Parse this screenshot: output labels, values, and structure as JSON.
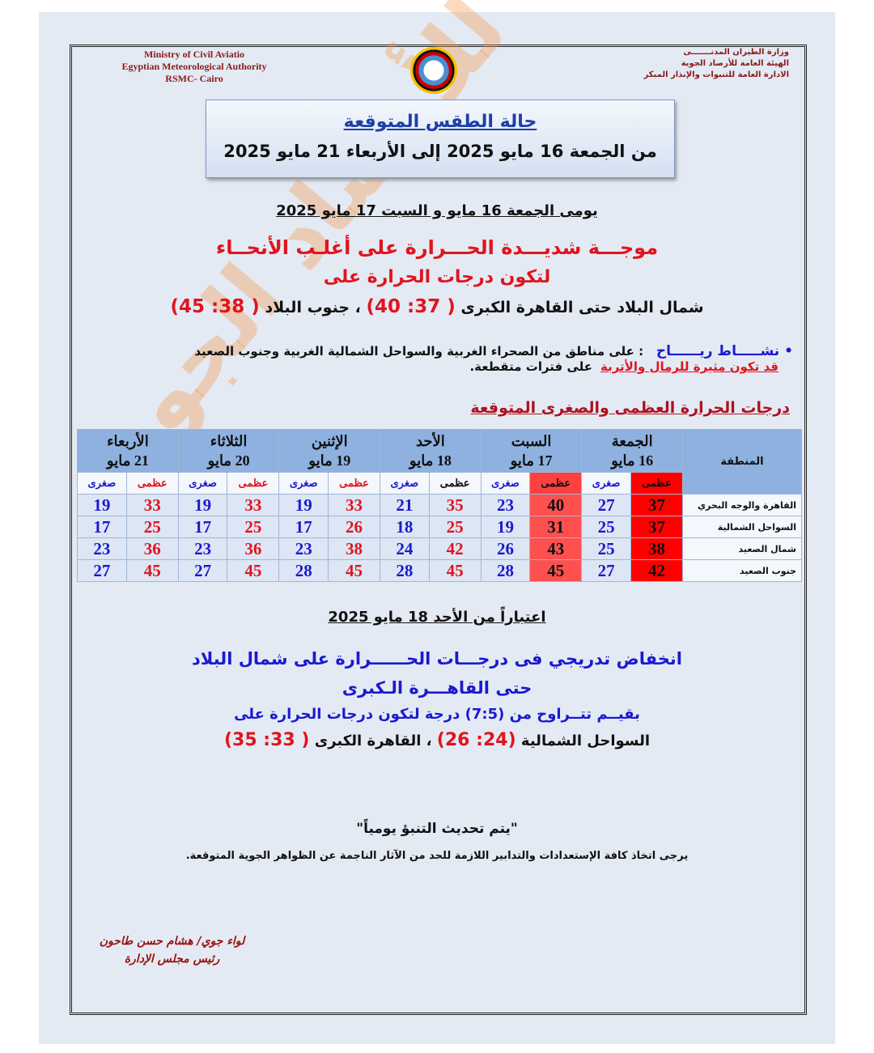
{
  "header": {
    "en_lines": [
      "Ministry of Civil Aviatio",
      "Egyptian Meteorological Authority",
      "RSMC- Cairo"
    ],
    "ar_lines": [
      "وزارة الطيران المدنـــــــى",
      "الهيئة العامة للأرصاد الجوية",
      "الادارة العامة للتنبوات والإنذار المبكر"
    ]
  },
  "title": {
    "main": "حالة الطقس المتوقعة",
    "period": "من الجمعة 16 مايو 2025  إلى الأربعاء  21 مايو 2025"
  },
  "section1": {
    "heading": "يومى الجمعة 16 مايو  و السبت 17 مايو 2025",
    "line1": "موجـــة شديـــدة الحـــرارة على أغلـب الأنحــاء",
    "line2": "لتكون درجات الحرارة على",
    "north": "شمال البلاد حتى القاهرة الكبرى",
    "north_range": "( 37: 40)",
    "sep": "،",
    "south": "جنوب البلاد",
    "south_range": "( 38: 45)"
  },
  "winds": {
    "label": "نشـــــاط ريــــــاح",
    "text": ": على مناطق من الصحراء الغربية والسواحل الشمالية الغربية وجنوب الصعيد",
    "text2": "على فترات متقطعة.",
    "warning": "قد تكون مثيرة للرمال والأتربة"
  },
  "table": {
    "title": "درجات الحرارة العظمى والصغرى المتوقعة",
    "region_header": "المنطقة",
    "max_label": "عظمى",
    "min_label": "صغرى",
    "days": [
      {
        "day": "الجمعة",
        "date": "16 مايو"
      },
      {
        "day": "السبت",
        "date": "17 مايو"
      },
      {
        "day": "الأحد",
        "date": "18 مايو"
      },
      {
        "day": "الإثنين",
        "date": "19 مايو"
      },
      {
        "day": "الثلاثاء",
        "date": "20 مايو"
      },
      {
        "day": "الأربعاء",
        "date": "21 مايو"
      }
    ],
    "rows": [
      {
        "region": "القاهرة والوجه البحري",
        "values": [
          [
            37,
            27
          ],
          [
            40,
            23
          ],
          [
            35,
            21
          ],
          [
            33,
            19
          ],
          [
            33,
            19
          ],
          [
            33,
            19
          ]
        ]
      },
      {
        "region": "السواحل الشمالية",
        "values": [
          [
            37,
            25
          ],
          [
            31,
            19
          ],
          [
            25,
            18
          ],
          [
            26,
            17
          ],
          [
            25,
            17
          ],
          [
            25,
            17
          ]
        ]
      },
      {
        "region": "شمال الصعيد",
        "values": [
          [
            38,
            25
          ],
          [
            43,
            26
          ],
          [
            42,
            24
          ],
          [
            38,
            23
          ],
          [
            36,
            23
          ],
          [
            36,
            23
          ]
        ]
      },
      {
        "region": "جنوب الصعيد",
        "values": [
          [
            42,
            27
          ],
          [
            45,
            28
          ],
          [
            45,
            28
          ],
          [
            45,
            28
          ],
          [
            45,
            27
          ],
          [
            45,
            27
          ]
        ]
      }
    ],
    "highlight_colors": {
      "day1_max": "#ff0000",
      "day2_max": "#ff5050"
    }
  },
  "section2": {
    "heading": "اعتباراً من الأحد 18 مايو 2025",
    "line1": "انخفاض تدريجي فى درجـــات الحــــــرارة على شمال البلاد",
    "line2": "حتى القاهـــرة الـكبرى",
    "line3": "بقيــم تتــراوح من (7:5) درجة لتكون درجات الحرارة على",
    "coast": "السواحل الشمالية",
    "coast_range": "(24: 26)",
    "sep": "،",
    "cairo": "القاهرة الكبرى",
    "cairo_range": "( 33: 35)"
  },
  "footer": {
    "update": "\"يتم تحديث التنبؤ يومياً\"",
    "advice": "يرجى اتخاذ كافة الإستعدادات والتدابير اللازمة للحد من الآثار الناجمة عن الظواهر الجوية المتوقعة.",
    "signer": "لواء جوي/ هشام حسن طاحون",
    "role": "رئيس مجلس الإدارة"
  },
  "watermark": "الهيئة العامة للأرصاد الجوية"
}
